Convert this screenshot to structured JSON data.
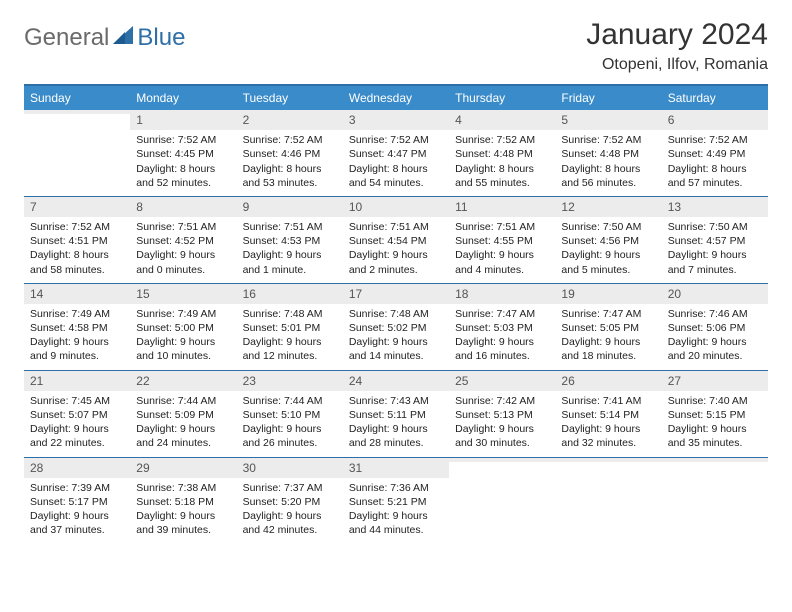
{
  "logo": {
    "general": "General",
    "blue": "Blue"
  },
  "title": "January 2024",
  "location": "Otopeni, Ilfov, Romania",
  "colors": {
    "header_bg": "#3a8bc9",
    "border": "#2f6fa8",
    "daynum_bg": "#ececec",
    "text": "#222222"
  },
  "day_headers": [
    "Sunday",
    "Monday",
    "Tuesday",
    "Wednesday",
    "Thursday",
    "Friday",
    "Saturday"
  ],
  "weeks": [
    [
      {
        "n": "",
        "sr": "",
        "ss": "",
        "dl": ""
      },
      {
        "n": "1",
        "sr": "Sunrise: 7:52 AM",
        "ss": "Sunset: 4:45 PM",
        "dl": "Daylight: 8 hours and 52 minutes."
      },
      {
        "n": "2",
        "sr": "Sunrise: 7:52 AM",
        "ss": "Sunset: 4:46 PM",
        "dl": "Daylight: 8 hours and 53 minutes."
      },
      {
        "n": "3",
        "sr": "Sunrise: 7:52 AM",
        "ss": "Sunset: 4:47 PM",
        "dl": "Daylight: 8 hours and 54 minutes."
      },
      {
        "n": "4",
        "sr": "Sunrise: 7:52 AM",
        "ss": "Sunset: 4:48 PM",
        "dl": "Daylight: 8 hours and 55 minutes."
      },
      {
        "n": "5",
        "sr": "Sunrise: 7:52 AM",
        "ss": "Sunset: 4:48 PM",
        "dl": "Daylight: 8 hours and 56 minutes."
      },
      {
        "n": "6",
        "sr": "Sunrise: 7:52 AM",
        "ss": "Sunset: 4:49 PM",
        "dl": "Daylight: 8 hours and 57 minutes."
      }
    ],
    [
      {
        "n": "7",
        "sr": "Sunrise: 7:52 AM",
        "ss": "Sunset: 4:51 PM",
        "dl": "Daylight: 8 hours and 58 minutes."
      },
      {
        "n": "8",
        "sr": "Sunrise: 7:51 AM",
        "ss": "Sunset: 4:52 PM",
        "dl": "Daylight: 9 hours and 0 minutes."
      },
      {
        "n": "9",
        "sr": "Sunrise: 7:51 AM",
        "ss": "Sunset: 4:53 PM",
        "dl": "Daylight: 9 hours and 1 minute."
      },
      {
        "n": "10",
        "sr": "Sunrise: 7:51 AM",
        "ss": "Sunset: 4:54 PM",
        "dl": "Daylight: 9 hours and 2 minutes."
      },
      {
        "n": "11",
        "sr": "Sunrise: 7:51 AM",
        "ss": "Sunset: 4:55 PM",
        "dl": "Daylight: 9 hours and 4 minutes."
      },
      {
        "n": "12",
        "sr": "Sunrise: 7:50 AM",
        "ss": "Sunset: 4:56 PM",
        "dl": "Daylight: 9 hours and 5 minutes."
      },
      {
        "n": "13",
        "sr": "Sunrise: 7:50 AM",
        "ss": "Sunset: 4:57 PM",
        "dl": "Daylight: 9 hours and 7 minutes."
      }
    ],
    [
      {
        "n": "14",
        "sr": "Sunrise: 7:49 AM",
        "ss": "Sunset: 4:58 PM",
        "dl": "Daylight: 9 hours and 9 minutes."
      },
      {
        "n": "15",
        "sr": "Sunrise: 7:49 AM",
        "ss": "Sunset: 5:00 PM",
        "dl": "Daylight: 9 hours and 10 minutes."
      },
      {
        "n": "16",
        "sr": "Sunrise: 7:48 AM",
        "ss": "Sunset: 5:01 PM",
        "dl": "Daylight: 9 hours and 12 minutes."
      },
      {
        "n": "17",
        "sr": "Sunrise: 7:48 AM",
        "ss": "Sunset: 5:02 PM",
        "dl": "Daylight: 9 hours and 14 minutes."
      },
      {
        "n": "18",
        "sr": "Sunrise: 7:47 AM",
        "ss": "Sunset: 5:03 PM",
        "dl": "Daylight: 9 hours and 16 minutes."
      },
      {
        "n": "19",
        "sr": "Sunrise: 7:47 AM",
        "ss": "Sunset: 5:05 PM",
        "dl": "Daylight: 9 hours and 18 minutes."
      },
      {
        "n": "20",
        "sr": "Sunrise: 7:46 AM",
        "ss": "Sunset: 5:06 PM",
        "dl": "Daylight: 9 hours and 20 minutes."
      }
    ],
    [
      {
        "n": "21",
        "sr": "Sunrise: 7:45 AM",
        "ss": "Sunset: 5:07 PM",
        "dl": "Daylight: 9 hours and 22 minutes."
      },
      {
        "n": "22",
        "sr": "Sunrise: 7:44 AM",
        "ss": "Sunset: 5:09 PM",
        "dl": "Daylight: 9 hours and 24 minutes."
      },
      {
        "n": "23",
        "sr": "Sunrise: 7:44 AM",
        "ss": "Sunset: 5:10 PM",
        "dl": "Daylight: 9 hours and 26 minutes."
      },
      {
        "n": "24",
        "sr": "Sunrise: 7:43 AM",
        "ss": "Sunset: 5:11 PM",
        "dl": "Daylight: 9 hours and 28 minutes."
      },
      {
        "n": "25",
        "sr": "Sunrise: 7:42 AM",
        "ss": "Sunset: 5:13 PM",
        "dl": "Daylight: 9 hours and 30 minutes."
      },
      {
        "n": "26",
        "sr": "Sunrise: 7:41 AM",
        "ss": "Sunset: 5:14 PM",
        "dl": "Daylight: 9 hours and 32 minutes."
      },
      {
        "n": "27",
        "sr": "Sunrise: 7:40 AM",
        "ss": "Sunset: 5:15 PM",
        "dl": "Daylight: 9 hours and 35 minutes."
      }
    ],
    [
      {
        "n": "28",
        "sr": "Sunrise: 7:39 AM",
        "ss": "Sunset: 5:17 PM",
        "dl": "Daylight: 9 hours and 37 minutes."
      },
      {
        "n": "29",
        "sr": "Sunrise: 7:38 AM",
        "ss": "Sunset: 5:18 PM",
        "dl": "Daylight: 9 hours and 39 minutes."
      },
      {
        "n": "30",
        "sr": "Sunrise: 7:37 AM",
        "ss": "Sunset: 5:20 PM",
        "dl": "Daylight: 9 hours and 42 minutes."
      },
      {
        "n": "31",
        "sr": "Sunrise: 7:36 AM",
        "ss": "Sunset: 5:21 PM",
        "dl": "Daylight: 9 hours and 44 minutes."
      },
      {
        "n": "",
        "sr": "",
        "ss": "",
        "dl": ""
      },
      {
        "n": "",
        "sr": "",
        "ss": "",
        "dl": ""
      },
      {
        "n": "",
        "sr": "",
        "ss": "",
        "dl": ""
      }
    ]
  ]
}
